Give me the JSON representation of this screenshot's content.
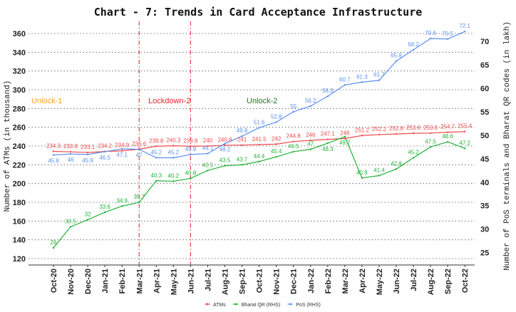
{
  "chart_data": {
    "type": "line",
    "title": "Chart - 7: Trends in Card Acceptance Infrastructure",
    "ylabel": "Number of ATMs (in thousand)",
    "ylabel_right": "Number of PoS terminals and Bharat QR codes (in lakh)",
    "ylim": [
      120,
      360
    ],
    "ylim_right": [
      25,
      72.5
    ],
    "yticks": [
      120,
      140,
      160,
      180,
      200,
      220,
      240,
      260,
      280,
      300,
      320,
      340,
      360
    ],
    "yticks_right": [
      25,
      30,
      35,
      40,
      45,
      50,
      55,
      60,
      65,
      70
    ],
    "grid": "horizontal dotted",
    "legend_position": "bottom",
    "categories": [
      "Oct-20",
      "Nov-20",
      "Dec-20",
      "Jan-21",
      "Feb-21",
      "Mar-21",
      "Apr-21",
      "May-21",
      "Jun-21",
      "Jul-21",
      "Aug-21",
      "Sep-21",
      "Oct-21",
      "Nov-21",
      "Dec-21",
      "Jan-22",
      "Feb-22",
      "Mar-22",
      "Apr-22",
      "May-22",
      "Jun-22",
      "Jul-22",
      "Aug-22",
      "Sep-22",
      "Oct-22"
    ],
    "series": [
      {
        "name": "ATMs",
        "axis": "left",
        "color": "#f0494b",
        "values": [
          234.3,
          233.8,
          233.1,
          234.2,
          234.9,
          236.6,
          239.8,
          240.3,
          239.8,
          240,
          240.8,
          241,
          241.5,
          242,
          244.8,
          246,
          247.1,
          248,
          251.2,
          252.2,
          252.8,
          253.6,
          253.8,
          254.7,
          255.4
        ]
      },
      {
        "name": "Bharat QR (RHS)",
        "axis": "right",
        "color": "#22b33a",
        "values": [
          26,
          30.5,
          32,
          33.6,
          34.9,
          35.7,
          40.3,
          40.2,
          40.8,
          42.5,
          43.5,
          43.7,
          44.4,
          45.4,
          46.5,
          47,
          48.3,
          49.7,
          40.9,
          41.4,
          42.8,
          45.2,
          47.5,
          48.6,
          47.2
        ]
      },
      {
        "name": "PoS (RHS)",
        "axis": "right",
        "color": "#5b8ff0",
        "values": [
          45.8,
          46,
          45.9,
          46.5,
          47.1,
          47,
          45.2,
          45.2,
          45.9,
          46.1,
          48.2,
          49.8,
          51.6,
          52.8,
          55,
          56.2,
          58.3,
          60.7,
          61.3,
          61.7,
          65.8,
          68.2,
          70.6,
          70.5,
          72.1
        ]
      }
    ],
    "phase_lines": [
      "Mar-21",
      "Jun-21"
    ],
    "annotations": [
      {
        "text": "Unlock-1",
        "color": "#f5a623"
      },
      {
        "text": "Lockdown-2",
        "color": "#e8252b"
      },
      {
        "text": "Unlock-2",
        "color": "#1e7a1e"
      }
    ]
  }
}
